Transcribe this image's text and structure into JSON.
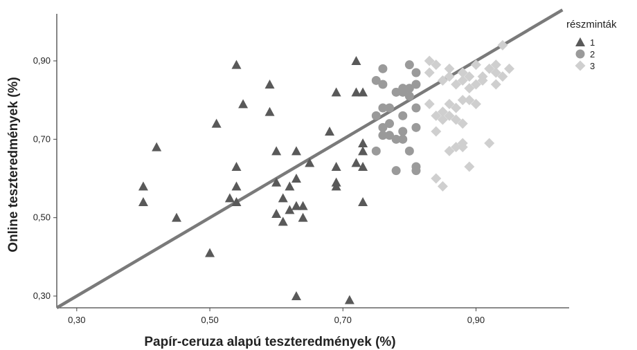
{
  "chart_data": {
    "type": "scatter",
    "title": "",
    "xlabel": "Papír-ceruza alapú teszteredmények (%)",
    "ylabel": "Online teszteredmények (%)",
    "xlim": [
      0.27,
      1.04
    ],
    "ylim": [
      0.27,
      1.02
    ],
    "x_ticks": [
      0.3,
      0.5,
      0.7,
      0.9
    ],
    "x_tick_labels": [
      "0,30",
      "0,50",
      "0,70",
      "0,90"
    ],
    "y_ticks": [
      0.3,
      0.5,
      0.7,
      0.9
    ],
    "y_tick_labels": [
      "0,30",
      "0,50",
      "0,70",
      "0,90"
    ],
    "grid": false,
    "legend": {
      "title": "részminták",
      "placement": "top-right",
      "entries": [
        "1",
        "2",
        "3"
      ]
    },
    "reference_line": {
      "x": [
        0.27,
        1.03
      ],
      "y": [
        0.27,
        1.03
      ],
      "color": "#7a7a7a"
    },
    "series": [
      {
        "name": "1",
        "marker": "triangle",
        "color": "#595959",
        "points": [
          [
            0.4,
            0.58
          ],
          [
            0.4,
            0.54
          ],
          [
            0.42,
            0.68
          ],
          [
            0.45,
            0.5
          ],
          [
            0.5,
            0.41
          ],
          [
            0.51,
            0.74
          ],
          [
            0.53,
            0.55
          ],
          [
            0.54,
            0.58
          ],
          [
            0.54,
            0.63
          ],
          [
            0.54,
            0.54
          ],
          [
            0.54,
            0.89
          ],
          [
            0.55,
            0.79
          ],
          [
            0.59,
            0.84
          ],
          [
            0.59,
            0.77
          ],
          [
            0.6,
            0.67
          ],
          [
            0.6,
            0.59
          ],
          [
            0.6,
            0.51
          ],
          [
            0.61,
            0.55
          ],
          [
            0.61,
            0.49
          ],
          [
            0.62,
            0.58
          ],
          [
            0.62,
            0.52
          ],
          [
            0.63,
            0.67
          ],
          [
            0.63,
            0.6
          ],
          [
            0.63,
            0.53
          ],
          [
            0.63,
            0.3
          ],
          [
            0.64,
            0.53
          ],
          [
            0.64,
            0.5
          ],
          [
            0.65,
            0.64
          ],
          [
            0.68,
            0.72
          ],
          [
            0.69,
            0.82
          ],
          [
            0.69,
            0.63
          ],
          [
            0.69,
            0.59
          ],
          [
            0.69,
            0.58
          ],
          [
            0.71,
            0.29
          ],
          [
            0.72,
            0.9
          ],
          [
            0.72,
            0.82
          ],
          [
            0.72,
            0.64
          ],
          [
            0.73,
            0.82
          ],
          [
            0.73,
            0.69
          ],
          [
            0.73,
            0.67
          ],
          [
            0.73,
            0.63
          ],
          [
            0.73,
            0.54
          ]
        ]
      },
      {
        "name": "2",
        "marker": "circle",
        "color": "#9a9a9a",
        "points": [
          [
            0.75,
            0.85
          ],
          [
            0.75,
            0.76
          ],
          [
            0.75,
            0.67
          ],
          [
            0.76,
            0.88
          ],
          [
            0.76,
            0.84
          ],
          [
            0.76,
            0.78
          ],
          [
            0.76,
            0.73
          ],
          [
            0.76,
            0.71
          ],
          [
            0.77,
            0.78
          ],
          [
            0.77,
            0.74
          ],
          [
            0.77,
            0.71
          ],
          [
            0.78,
            0.82
          ],
          [
            0.78,
            0.7
          ],
          [
            0.78,
            0.62
          ],
          [
            0.79,
            0.83
          ],
          [
            0.79,
            0.82
          ],
          [
            0.79,
            0.76
          ],
          [
            0.79,
            0.72
          ],
          [
            0.79,
            0.7
          ],
          [
            0.8,
            0.89
          ],
          [
            0.8,
            0.83
          ],
          [
            0.8,
            0.81
          ],
          [
            0.8,
            0.67
          ],
          [
            0.81,
            0.87
          ],
          [
            0.81,
            0.84
          ],
          [
            0.81,
            0.73
          ],
          [
            0.81,
            0.63
          ],
          [
            0.81,
            0.62
          ],
          [
            0.81,
            0.78
          ]
        ]
      },
      {
        "name": "3",
        "marker": "diamond",
        "color": "#cfcfcf",
        "points": [
          [
            0.83,
            0.9
          ],
          [
            0.83,
            0.87
          ],
          [
            0.83,
            0.79
          ],
          [
            0.84,
            0.89
          ],
          [
            0.84,
            0.76
          ],
          [
            0.84,
            0.72
          ],
          [
            0.84,
            0.6
          ],
          [
            0.85,
            0.85
          ],
          [
            0.85,
            0.77
          ],
          [
            0.85,
            0.75
          ],
          [
            0.85,
            0.58
          ],
          [
            0.86,
            0.88
          ],
          [
            0.86,
            0.86
          ],
          [
            0.86,
            0.79
          ],
          [
            0.86,
            0.76
          ],
          [
            0.86,
            0.67
          ],
          [
            0.87,
            0.84
          ],
          [
            0.87,
            0.78
          ],
          [
            0.87,
            0.75
          ],
          [
            0.87,
            0.68
          ],
          [
            0.88,
            0.87
          ],
          [
            0.88,
            0.85
          ],
          [
            0.88,
            0.8
          ],
          [
            0.88,
            0.74
          ],
          [
            0.88,
            0.69
          ],
          [
            0.88,
            0.68
          ],
          [
            0.89,
            0.86
          ],
          [
            0.89,
            0.83
          ],
          [
            0.89,
            0.8
          ],
          [
            0.89,
            0.63
          ],
          [
            0.9,
            0.89
          ],
          [
            0.9,
            0.84
          ],
          [
            0.9,
            0.79
          ],
          [
            0.91,
            0.86
          ],
          [
            0.91,
            0.85
          ],
          [
            0.92,
            0.88
          ],
          [
            0.92,
            0.69
          ],
          [
            0.93,
            0.87
          ],
          [
            0.93,
            0.84
          ],
          [
            0.93,
            0.89
          ],
          [
            0.94,
            0.86
          ],
          [
            0.94,
            0.94
          ],
          [
            0.95,
            0.88
          ]
        ]
      }
    ]
  }
}
